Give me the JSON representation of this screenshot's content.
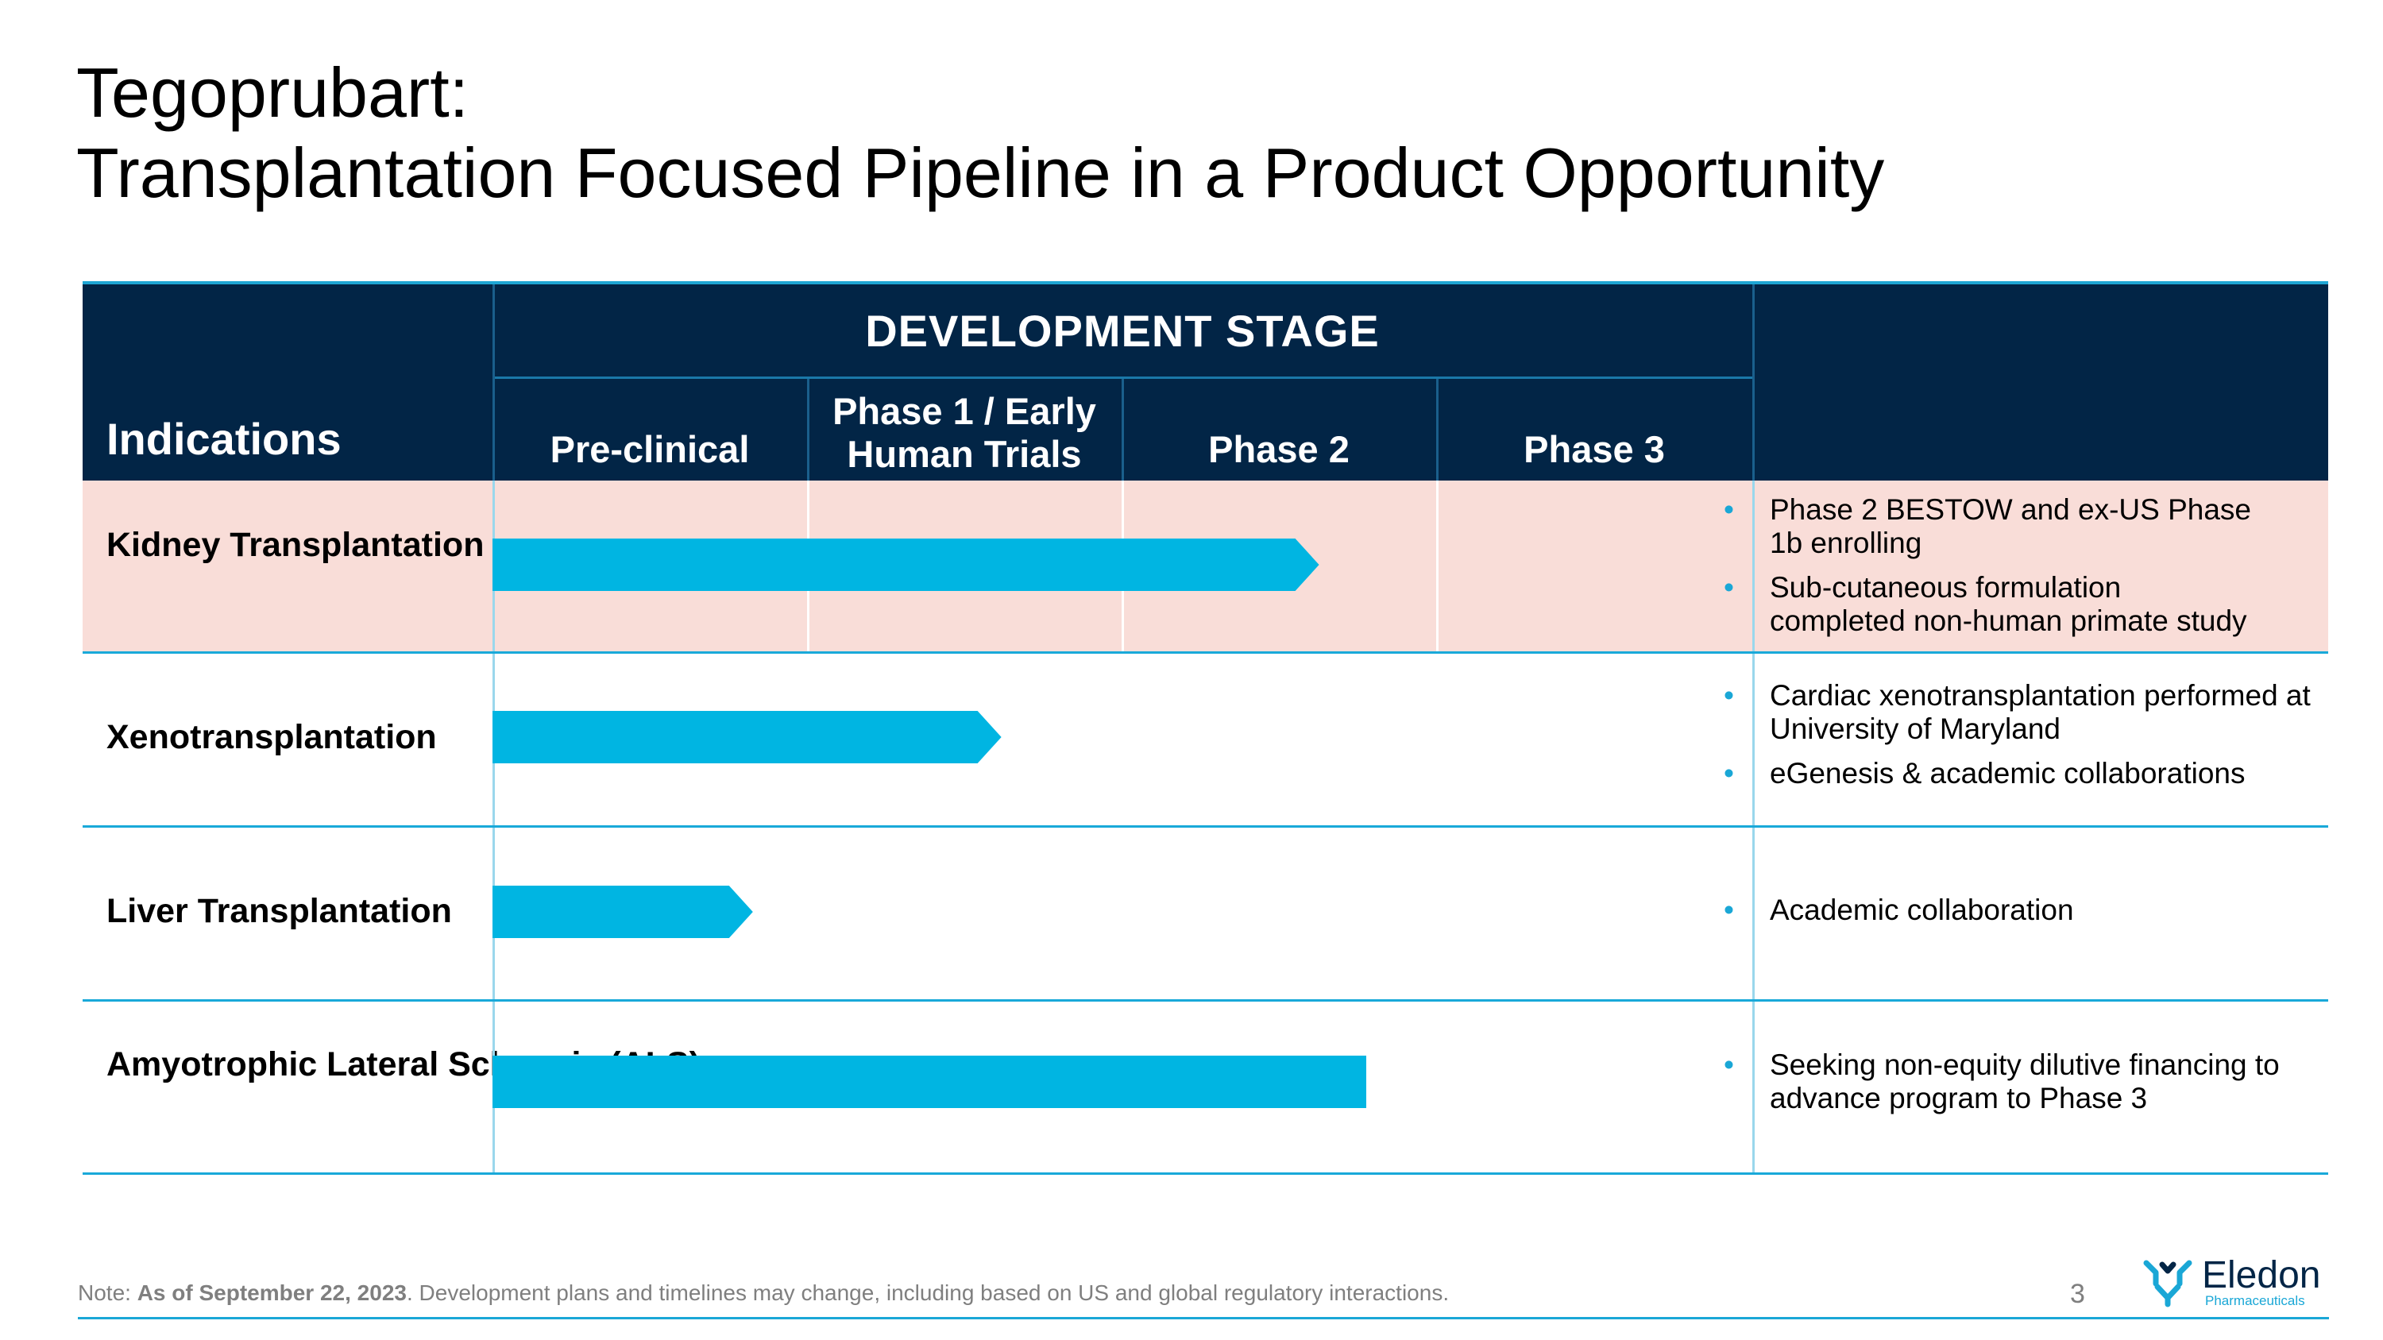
{
  "title": {
    "line1": "Tegoprubart:",
    "line2": "Transplantation Focused Pipeline in a Product Opportunity"
  },
  "table": {
    "stage_header": "DEVELOPMENT STAGE",
    "indications_header": "Indications",
    "phases": [
      "Pre-clinical",
      "Phase 1 / Early Human Trials",
      "Phase 2",
      "Phase 3"
    ],
    "rows": [
      {
        "indication": "Kidney Transplantation",
        "progress_phases": 2.6,
        "notes": [
          "Phase 2 BESTOW and ex-US Phase 1b enrolling",
          "Sub-cutaneous formulation completed non-human primate study"
        ]
      },
      {
        "indication": "Xenotransplantation",
        "progress_phases": 1.59,
        "notes": [
          "Cardiac xenotransplantation performed at University of Maryland",
          "eGenesis & academic collaborations"
        ]
      },
      {
        "indication": "Liver Transplantation",
        "progress_phases": 0.8,
        "notes": [
          "Academic collaboration"
        ]
      },
      {
        "indication": "Amyotrophic Lateral Sclerosis (ALS)",
        "progress_phases": 3.0,
        "notes": [
          "Seeking non-equity dilutive financing to advance program to Phase 3"
        ]
      }
    ]
  },
  "footer": {
    "note_prefix": "Note: ",
    "note_date": "As of September 22, 2023",
    "note_rest": ". Development plans and timelines may change, including based on US and global regulatory interactions.",
    "page_number": "3"
  },
  "logo": {
    "name": "Eledon",
    "subtitle": "Pharmaceuticals",
    "icon": "eledon-logo-icon"
  },
  "colors": {
    "header_bg": "#022546",
    "accent": "#00B5E2",
    "highlight_row": "#F9DDD8"
  }
}
